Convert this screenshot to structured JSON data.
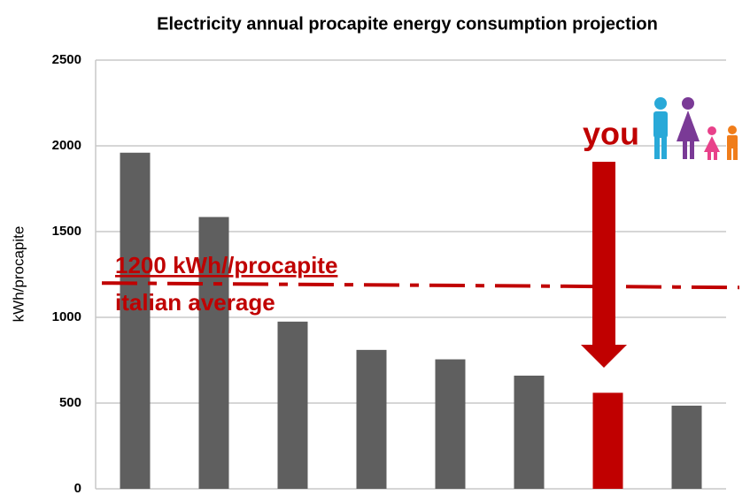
{
  "chart_data": {
    "type": "bar",
    "title": "Electricity annual procapite energy consumption projection",
    "y_label": "kWh/procapite",
    "categories": [
      null,
      null,
      null,
      null,
      null,
      null,
      null,
      null
    ],
    "values": [
      1960,
      1585,
      975,
      810,
      755,
      660,
      560,
      485
    ],
    "colors": [
      "#5f5f5f",
      "#5f5f5f",
      "#5f5f5f",
      "#5f5f5f",
      "#5f5f5f",
      "#5f5f5f",
      "#c00000",
      "#5f5f5f"
    ],
    "ylim": [
      0,
      2500
    ],
    "yticks": [
      0,
      500,
      1000,
      1500,
      2000,
      2500
    ],
    "grid": true,
    "reference_line": {
      "value": 1200,
      "color": "#c00000",
      "label": "1200 kWh//procapite",
      "sublabel": "italian average"
    },
    "annotation": "you"
  }
}
